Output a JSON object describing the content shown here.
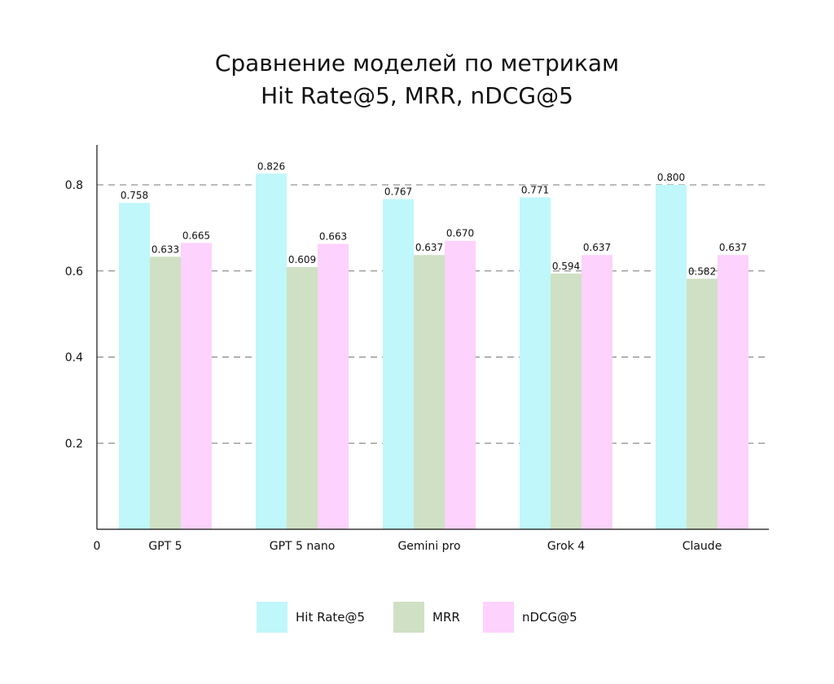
{
  "title_lines": [
    "Сравнение моделей по метрикам",
    "Hit Rate@5, MRR, nDCG@5"
  ],
  "chart_data": {
    "type": "bar",
    "title": "Сравнение моделей по метрикам Hit Rate@5, MRR, nDCG@5",
    "categories": [
      "GPT 5",
      "GPT 5 nano",
      "Gemini pro",
      "Grok 4",
      "Claude"
    ],
    "series": [
      {
        "name": "Hit Rate@5",
        "color": "#bff7fa",
        "values": [
          0.758,
          0.826,
          0.767,
          0.771,
          0.8
        ]
      },
      {
        "name": "MRR",
        "color": "#cfe0c4",
        "values": [
          0.633,
          0.609,
          0.637,
          0.594,
          0.582
        ]
      },
      {
        "name": "nDCG@5",
        "color": "#fdd2fc",
        "values": [
          0.665,
          0.663,
          0.67,
          0.637,
          0.637
        ]
      }
    ],
    "value_labels": [
      [
        "0.758",
        "0.826",
        "0.767",
        "0.771",
        "0.800"
      ],
      [
        "0.633",
        "0.609",
        "0.637",
        "0.594",
        "0.582"
      ],
      [
        "0.665",
        "0.663",
        "0.670",
        "0.637",
        "0.637"
      ]
    ],
    "yticks": [
      0.2,
      0.4,
      0.6,
      0.8
    ],
    "ytick_labels": [
      "0.2",
      "0.4",
      "0.6",
      "0.8"
    ],
    "origin_label": "0",
    "ylim": [
      0,
      0.9
    ],
    "grid": "horizontal-dashed",
    "legend_position": "bottom-center"
  }
}
